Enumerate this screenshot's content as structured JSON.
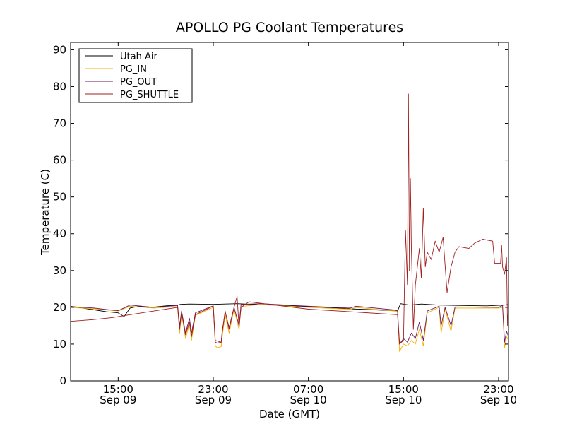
{
  "chart_data": {
    "type": "line",
    "title": "APOLLO PG Coolant Temperatures",
    "xlabel": "Date (GMT)",
    "ylabel": "Temperature (C)",
    "xlim": [
      "2014-09-09 11:00",
      "2014-09-10 23:50"
    ],
    "ylim": [
      0,
      92
    ],
    "yticks": [
      0,
      10,
      20,
      30,
      40,
      50,
      60,
      70,
      80,
      90
    ],
    "xticks": [
      {
        "t": "2014-09-09 15:00",
        "time": "15:00",
        "date": "Sep 09"
      },
      {
        "t": "2014-09-09 23:00",
        "time": "23:00",
        "date": "Sep 09"
      },
      {
        "t": "2014-09-10 07:00",
        "time": "07:00",
        "date": "Sep 10"
      },
      {
        "t": "2014-09-10 15:00",
        "time": "15:00",
        "date": "Sep 10"
      },
      {
        "t": "2014-09-10 23:00",
        "time": "23:00",
        "date": "Sep 10"
      }
    ],
    "grid": false,
    "legend": {
      "placement": "upper-left"
    },
    "series": [
      {
        "name": "Utah Air",
        "color": "#000000",
        "points": [
          [
            "2014-09-09 11:00",
            20.3
          ],
          [
            "2014-09-09 13:00",
            19.3
          ],
          [
            "2014-09-09 14:00",
            18.8
          ],
          [
            "2014-09-09 15:00",
            18.5
          ],
          [
            "2014-09-09 15:30",
            17.5
          ],
          [
            "2014-09-09 16:00",
            19.8
          ],
          [
            "2014-09-09 16:45",
            20.3
          ],
          [
            "2014-09-09 17:30",
            19.9
          ],
          [
            "2014-09-09 19:00",
            20.4
          ],
          [
            "2014-09-09 20:00",
            20.6
          ],
          [
            "2014-09-09 20:15",
            20.8
          ],
          [
            "2014-09-09 21:00",
            20.9
          ],
          [
            "2014-09-09 23:00",
            20.8
          ],
          [
            "2014-09-10 01:00",
            21.0
          ],
          [
            "2014-09-10 03:00",
            20.7
          ],
          [
            "2014-09-10 05:00",
            20.5
          ],
          [
            "2014-09-10 07:00",
            20.2
          ],
          [
            "2014-09-10 09:00",
            19.9
          ],
          [
            "2014-09-10 10:30",
            19.6
          ],
          [
            "2014-09-10 12:00",
            19.4
          ],
          [
            "2014-09-10 14:00",
            19.1
          ],
          [
            "2014-09-10 14:30",
            19.0
          ],
          [
            "2014-09-10 14:45",
            21.0
          ],
          [
            "2014-09-10 15:30",
            20.6
          ],
          [
            "2014-09-10 16:30",
            20.9
          ],
          [
            "2014-09-10 18:00",
            20.6
          ],
          [
            "2014-09-10 20:00",
            20.5
          ],
          [
            "2014-09-10 22:00",
            20.4
          ],
          [
            "2014-09-10 23:30",
            20.6
          ],
          [
            "2014-09-10 23:50",
            20.8
          ]
        ]
      },
      {
        "name": "PG_IN",
        "color": "#f5b000",
        "points": [
          [
            "2014-09-09 11:00",
            20.0
          ],
          [
            "2014-09-09 13:00",
            19.6
          ],
          [
            "2014-09-09 14:00",
            19.3
          ],
          [
            "2014-09-09 15:00",
            19.0
          ],
          [
            "2014-09-09 16:00",
            20.3
          ],
          [
            "2014-09-09 18:00",
            19.8
          ],
          [
            "2014-09-09 20:00",
            20.2
          ],
          [
            "2014-09-09 20:10",
            13.0
          ],
          [
            "2014-09-09 20:20",
            18.5
          ],
          [
            "2014-09-09 20:40",
            11.5
          ],
          [
            "2014-09-09 21:00",
            15.5
          ],
          [
            "2014-09-09 21:10",
            11.0
          ],
          [
            "2014-09-09 21:30",
            17.8
          ],
          [
            "2014-09-09 22:40",
            19.5
          ],
          [
            "2014-09-09 23:00",
            20.0
          ],
          [
            "2014-09-09 23:10",
            9.5
          ],
          [
            "2014-09-09 23:20",
            9.0
          ],
          [
            "2014-09-09 23:40",
            9.3
          ],
          [
            "2014-09-09 23:45",
            12.0
          ],
          [
            "2014-09-10 00:00",
            18.0
          ],
          [
            "2014-09-10 00:20",
            13.0
          ],
          [
            "2014-09-10 00:45",
            19.5
          ],
          [
            "2014-09-10 01:10",
            14.0
          ],
          [
            "2014-09-10 01:20",
            20.2
          ],
          [
            "2014-09-10 03:00",
            20.8
          ],
          [
            "2014-09-10 07:00",
            20.0
          ],
          [
            "2014-09-10 10:30",
            19.5
          ],
          [
            "2014-09-10 11:00",
            20.0
          ],
          [
            "2014-09-10 14:30",
            18.9
          ],
          [
            "2014-09-10 14:40",
            8.0
          ],
          [
            "2014-09-10 15:00",
            10.0
          ],
          [
            "2014-09-10 15:20",
            9.5
          ],
          [
            "2014-09-10 15:40",
            11.0
          ],
          [
            "2014-09-10 16:00",
            10.0
          ],
          [
            "2014-09-10 16:20",
            14.0
          ],
          [
            "2014-09-10 16:40",
            9.5
          ],
          [
            "2014-09-10 17:00",
            18.5
          ],
          [
            "2014-09-10 18:00",
            20.0
          ],
          [
            "2014-09-10 18:10",
            13.0
          ],
          [
            "2014-09-10 18:30",
            19.6
          ],
          [
            "2014-09-10 19:00",
            13.5
          ],
          [
            "2014-09-10 19:20",
            19.8
          ],
          [
            "2014-09-10 23:00",
            19.8
          ],
          [
            "2014-09-10 23:20",
            20.0
          ],
          [
            "2014-09-10 23:30",
            9.0
          ],
          [
            "2014-09-10 23:40",
            12.0
          ],
          [
            "2014-09-10 23:50",
            11.0
          ]
        ]
      },
      {
        "name": "PG_OUT",
        "color": "#6e1a5a",
        "points": [
          [
            "2014-09-09 11:00",
            20.2
          ],
          [
            "2014-09-09 13:00",
            19.8
          ],
          [
            "2014-09-09 14:00",
            19.4
          ],
          [
            "2014-09-09 15:00",
            19.1
          ],
          [
            "2014-09-09 16:00",
            20.6
          ],
          [
            "2014-09-09 18:00",
            20.0
          ],
          [
            "2014-09-09 20:00",
            20.5
          ],
          [
            "2014-09-09 20:10",
            15.0
          ],
          [
            "2014-09-09 20:20",
            19.0
          ],
          [
            "2014-09-09 20:40",
            13.0
          ],
          [
            "2014-09-09 21:00",
            17.0
          ],
          [
            "2014-09-09 21:10",
            13.0
          ],
          [
            "2014-09-09 21:30",
            18.5
          ],
          [
            "2014-09-09 22:40",
            20.0
          ],
          [
            "2014-09-09 23:00",
            20.4
          ],
          [
            "2014-09-09 23:10",
            10.5
          ],
          [
            "2014-09-09 23:20",
            10.3
          ],
          [
            "2014-09-09 23:40",
            10.5
          ],
          [
            "2014-09-09 23:45",
            13.5
          ],
          [
            "2014-09-10 00:00",
            18.8
          ],
          [
            "2014-09-10 00:20",
            14.5
          ],
          [
            "2014-09-10 00:45",
            20.0
          ],
          [
            "2014-09-10 01:10",
            15.0
          ],
          [
            "2014-09-10 01:20",
            20.8
          ],
          [
            "2014-09-10 03:00",
            21.0
          ],
          [
            "2014-09-10 07:00",
            20.3
          ],
          [
            "2014-09-10 10:30",
            19.8
          ],
          [
            "2014-09-10 11:00",
            20.3
          ],
          [
            "2014-09-10 14:30",
            19.2
          ],
          [
            "2014-09-10 14:40",
            10.0
          ],
          [
            "2014-09-10 15:00",
            11.5
          ],
          [
            "2014-09-10 15:20",
            10.5
          ],
          [
            "2014-09-10 15:40",
            13.0
          ],
          [
            "2014-09-10 16:00",
            11.5
          ],
          [
            "2014-09-10 16:20",
            16.0
          ],
          [
            "2014-09-10 16:40",
            11.0
          ],
          [
            "2014-09-10 17:00",
            19.0
          ],
          [
            "2014-09-10 18:00",
            20.3
          ],
          [
            "2014-09-10 18:10",
            15.0
          ],
          [
            "2014-09-10 18:30",
            20.0
          ],
          [
            "2014-09-10 19:00",
            15.0
          ],
          [
            "2014-09-10 19:20",
            20.1
          ],
          [
            "2014-09-10 23:00",
            20.0
          ],
          [
            "2014-09-10 23:20",
            20.5
          ],
          [
            "2014-09-10 23:30",
            10.5
          ],
          [
            "2014-09-10 23:40",
            13.5
          ],
          [
            "2014-09-10 23:50",
            12.0
          ]
        ]
      },
      {
        "name": "PG_SHUTTLE",
        "color": "#a02020",
        "points": [
          [
            "2014-09-09 11:00",
            16.2
          ],
          [
            "2014-09-09 13:00",
            16.7
          ],
          [
            "2014-09-09 14:30",
            17.2
          ],
          [
            "2014-09-09 16:00",
            18.0
          ],
          [
            "2014-09-09 18:00",
            19.0
          ],
          [
            "2014-09-09 20:00",
            20.0
          ],
          [
            "2014-09-09 20:10",
            14.0
          ],
          [
            "2014-09-09 20:20",
            18.5
          ],
          [
            "2014-09-09 20:40",
            12.5
          ],
          [
            "2014-09-09 21:00",
            16.0
          ],
          [
            "2014-09-09 21:10",
            12.0
          ],
          [
            "2014-09-09 21:30",
            18.0
          ],
          [
            "2014-09-09 22:40",
            19.8
          ],
          [
            "2014-09-09 23:00",
            20.4
          ],
          [
            "2014-09-09 23:10",
            11.0
          ],
          [
            "2014-09-09 23:40",
            10.5
          ],
          [
            "2014-09-09 23:45",
            13.0
          ],
          [
            "2014-09-10 00:00",
            19.0
          ],
          [
            "2014-09-10 00:20",
            14.0
          ],
          [
            "2014-09-10 00:45",
            20.0
          ],
          [
            "2014-09-10 01:00",
            23.0
          ],
          [
            "2014-09-10 01:10",
            14.5
          ],
          [
            "2014-09-10 01:20",
            20.0
          ],
          [
            "2014-09-10 02:00",
            21.5
          ],
          [
            "2014-09-10 07:00",
            19.5
          ],
          [
            "2014-09-10 10:30",
            18.8
          ],
          [
            "2014-09-10 14:30",
            18.0
          ],
          [
            "2014-09-10 14:40",
            10.0
          ],
          [
            "2014-09-10 15:00",
            11.0
          ],
          [
            "2014-09-10 15:10",
            41.0
          ],
          [
            "2014-09-10 15:20",
            26.0
          ],
          [
            "2014-09-10 15:25",
            78.0
          ],
          [
            "2014-09-10 15:30",
            30.0
          ],
          [
            "2014-09-10 15:35",
            55.0
          ],
          [
            "2014-09-10 15:40",
            36.0
          ],
          [
            "2014-09-10 15:50",
            14.0
          ],
          [
            "2014-09-10 16:00",
            26.0
          ],
          [
            "2014-09-10 16:20",
            36.0
          ],
          [
            "2014-09-10 16:30",
            28.0
          ],
          [
            "2014-09-10 16:40",
            47.0
          ],
          [
            "2014-09-10 16:50",
            31.0
          ],
          [
            "2014-09-10 17:00",
            35.0
          ],
          [
            "2014-09-10 17:20",
            33.0
          ],
          [
            "2014-09-10 17:40",
            38.0
          ],
          [
            "2014-09-10 18:00",
            35.0
          ],
          [
            "2014-09-10 18:20",
            39.0
          ],
          [
            "2014-09-10 18:40",
            24.0
          ],
          [
            "2014-09-10 19:00",
            31.0
          ],
          [
            "2014-09-10 19:20",
            35.0
          ],
          [
            "2014-09-10 19:40",
            36.5
          ],
          [
            "2014-09-10 20:30",
            36.0
          ],
          [
            "2014-09-10 21:00",
            37.5
          ],
          [
            "2014-09-10 21:40",
            38.5
          ],
          [
            "2014-09-10 22:30",
            38.0
          ],
          [
            "2014-09-10 22:40",
            32.0
          ],
          [
            "2014-09-10 23:10",
            32.0
          ],
          [
            "2014-09-10 23:15",
            37.0
          ],
          [
            "2014-09-10 23:20",
            31.0
          ],
          [
            "2014-09-10 23:30",
            29.0
          ],
          [
            "2014-09-10 23:40",
            33.5
          ],
          [
            "2014-09-10 23:45",
            15.0
          ],
          [
            "2014-09-10 23:50",
            20.5
          ]
        ]
      }
    ]
  }
}
